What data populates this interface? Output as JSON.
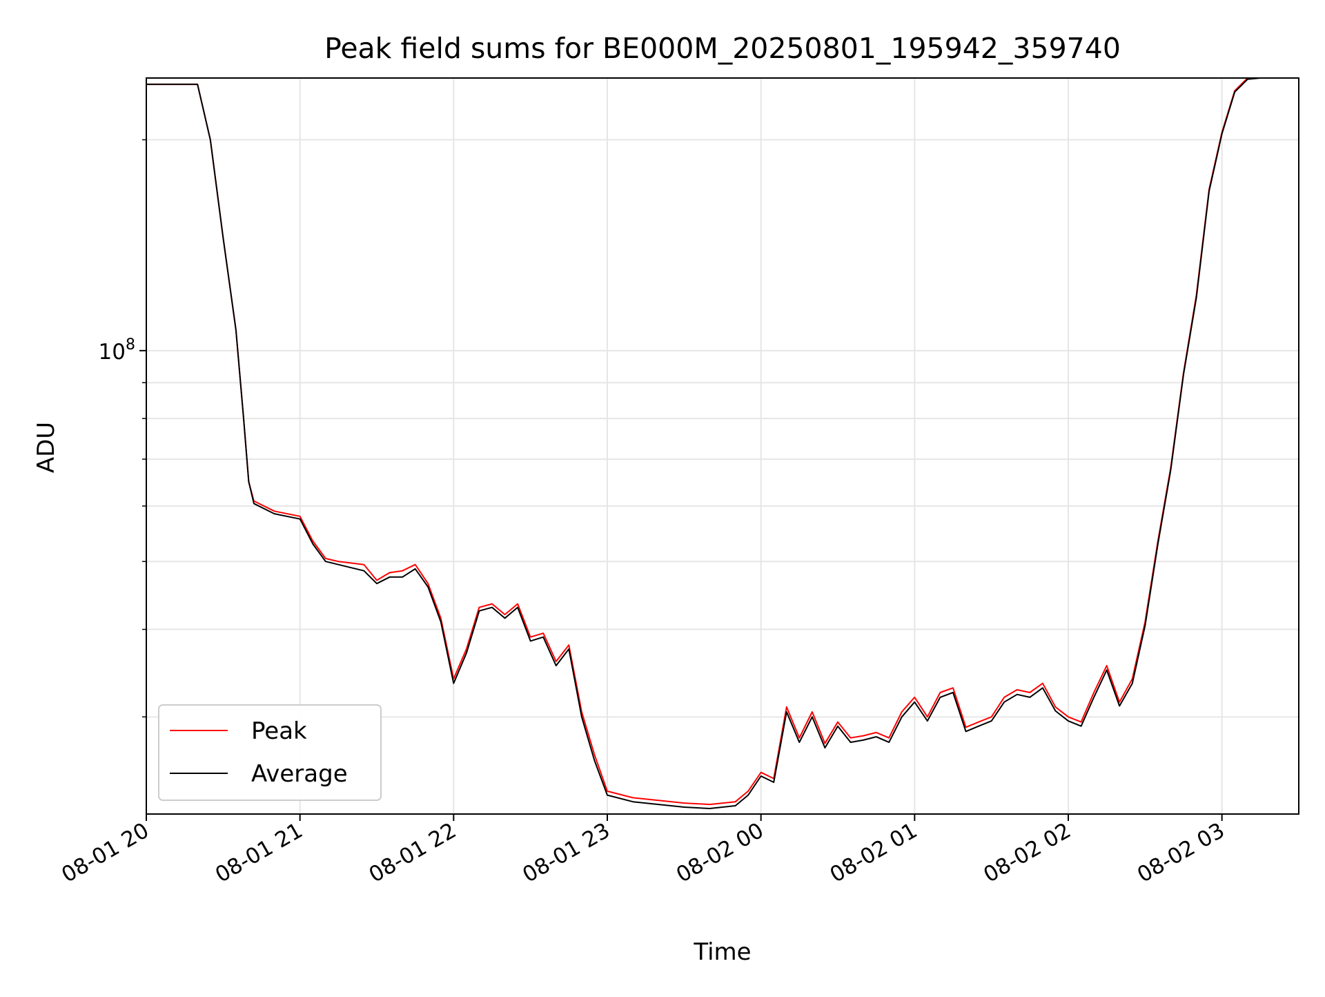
{
  "chart_data": {
    "type": "line",
    "title": "Peak field sums for BE000M_20250801_195942_359740",
    "xlabel": "Time",
    "ylabel": "ADU",
    "yscale": "log",
    "ylim": [
      21800000,
      245000000
    ],
    "xlim": [
      "2025-08-01 20:00",
      "2025-08-02 03:30"
    ],
    "x_ticks": [
      "08-01 20",
      "08-01 21",
      "08-01 22",
      "08-01 23",
      "08-02 00",
      "08-02 01",
      "08-02 02",
      "08-02 03"
    ],
    "y_ticks": [
      {
        "value": 100000000,
        "label": "10^8"
      }
    ],
    "grid": true,
    "legend_position": "lower-left",
    "x": [
      "2025-08-01 20:00",
      "2025-08-01 20:20",
      "2025-08-01 20:25",
      "2025-08-01 20:30",
      "2025-08-01 20:35",
      "2025-08-01 20:38",
      "2025-08-01 20:40",
      "2025-08-01 20:42",
      "2025-08-01 20:50",
      "2025-08-01 21:00",
      "2025-08-01 21:05",
      "2025-08-01 21:10",
      "2025-08-01 21:15",
      "2025-08-01 21:25",
      "2025-08-01 21:30",
      "2025-08-01 21:35",
      "2025-08-01 21:40",
      "2025-08-01 21:45",
      "2025-08-01 21:50",
      "2025-08-01 21:55",
      "2025-08-01 22:00",
      "2025-08-01 22:05",
      "2025-08-01 22:10",
      "2025-08-01 22:15",
      "2025-08-01 22:20",
      "2025-08-01 22:25",
      "2025-08-01 22:30",
      "2025-08-01 22:35",
      "2025-08-01 22:40",
      "2025-08-01 22:45",
      "2025-08-01 22:50",
      "2025-08-01 22:55",
      "2025-08-01 23:00",
      "2025-08-01 23:10",
      "2025-08-01 23:20",
      "2025-08-01 23:30",
      "2025-08-01 23:40",
      "2025-08-01 23:50",
      "2025-08-01 23:55",
      "2025-08-02 00:00",
      "2025-08-02 00:05",
      "2025-08-02 00:10",
      "2025-08-02 00:15",
      "2025-08-02 00:20",
      "2025-08-02 00:25",
      "2025-08-02 00:30",
      "2025-08-02 00:35",
      "2025-08-02 00:40",
      "2025-08-02 00:45",
      "2025-08-02 00:50",
      "2025-08-02 00:55",
      "2025-08-02 01:00",
      "2025-08-02 01:05",
      "2025-08-02 01:10",
      "2025-08-02 01:15",
      "2025-08-02 01:20",
      "2025-08-02 01:25",
      "2025-08-02 01:30",
      "2025-08-02 01:35",
      "2025-08-02 01:40",
      "2025-08-02 01:45",
      "2025-08-02 01:50",
      "2025-08-02 01:55",
      "2025-08-02 02:00",
      "2025-08-02 02:05",
      "2025-08-02 02:10",
      "2025-08-02 02:15",
      "2025-08-02 02:20",
      "2025-08-02 02:25",
      "2025-08-02 02:30",
      "2025-08-02 02:35",
      "2025-08-02 02:40",
      "2025-08-02 02:45",
      "2025-08-02 02:50",
      "2025-08-02 02:55",
      "2025-08-02 03:00",
      "2025-08-02 03:05",
      "2025-08-02 03:10",
      "2025-08-02 03:15",
      "2025-08-02 03:20",
      "2025-08-02 03:30"
    ],
    "series": [
      {
        "name": "Peak",
        "color": "#ff0000",
        "values": [
          240000000,
          240000000,
          200000000,
          145000000,
          107000000,
          80000000,
          65000000,
          61000000,
          59000000,
          58000000,
          53500000,
          50500000,
          50000000,
          49500000,
          47000000,
          48200000,
          48500000,
          49500000,
          46500000,
          41500000,
          34000000,
          37500000,
          43000000,
          43500000,
          42000000,
          43500000,
          39000000,
          39500000,
          36000000,
          38000000,
          30500000,
          26500000,
          23500000,
          23000000,
          22800000,
          22600000,
          22500000,
          22700000,
          23500000,
          25000000,
          24500000,
          31000000,
          28000000,
          30500000,
          27500000,
          29500000,
          28000000,
          28200000,
          28500000,
          28000000,
          30500000,
          32000000,
          30000000,
          32500000,
          33000000,
          29000000,
          29500000,
          30000000,
          32000000,
          32800000,
          32500000,
          33500000,
          31000000,
          30000000,
          29500000,
          32500000,
          35500000,
          31500000,
          34000000,
          41000000,
          53500000,
          68000000,
          93000000,
          120000000,
          170000000,
          205000000,
          235000000,
          245000000,
          245000000,
          245000000,
          245000000
        ]
      },
      {
        "name": "Average",
        "color": "#000000",
        "values": [
          240000000,
          240000000,
          200000000,
          145000000,
          107000000,
          80000000,
          65000000,
          60500000,
          58500000,
          57500000,
          53000000,
          50000000,
          49500000,
          48500000,
          46500000,
          47500000,
          47500000,
          48800000,
          46000000,
          41000000,
          33500000,
          37000000,
          42500000,
          43000000,
          41500000,
          43000000,
          38500000,
          39000000,
          35500000,
          37500000,
          30000000,
          26000000,
          23200000,
          22700000,
          22500000,
          22300000,
          22200000,
          22400000,
          23200000,
          24700000,
          24200000,
          30500000,
          27600000,
          30000000,
          27100000,
          29100000,
          27600000,
          27800000,
          28100000,
          27600000,
          30000000,
          31500000,
          29600000,
          32000000,
          32500000,
          28600000,
          29100000,
          29600000,
          31500000,
          32300000,
          32000000,
          33000000,
          30600000,
          29600000,
          29100000,
          32000000,
          35000000,
          31100000,
          33500000,
          40500000,
          53000000,
          67500000,
          92500000,
          119000000,
          169000000,
          204000000,
          234000000,
          244000000,
          245000000,
          245000000,
          245000000
        ]
      }
    ]
  }
}
